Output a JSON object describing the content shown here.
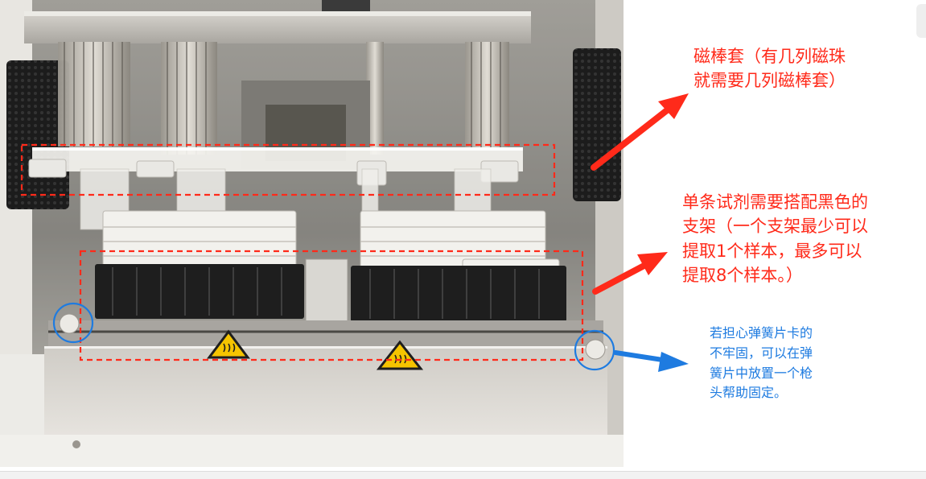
{
  "annotations": {
    "magnetic_sleeve": {
      "line1": "磁棒套（有几列磁珠",
      "line2": "就需要几列磁棒套）"
    },
    "reagent_rack": {
      "line1": "单条试剂需要搭配黑色的",
      "line2": "支架（一个支架最少可以",
      "line3": "提取1个样本，最多可以",
      "line4": "提取8个样本。）"
    },
    "spring_tip": {
      "line1": "若担心弹簧片卡的",
      "line2": "不牢固，可以在弹",
      "line3": "簧片中放置一个枪",
      "line4": "头帮助固定。"
    }
  },
  "colors": {
    "red_annotation": "#ff2a1a",
    "blue_annotation": "#1e7be0",
    "chassis_steel": "#c9c6c0",
    "black_rack": "#1e1e1e"
  },
  "icons": [
    "heat-warning-icon",
    "heat-warning-icon",
    "fan-grille-icon"
  ]
}
